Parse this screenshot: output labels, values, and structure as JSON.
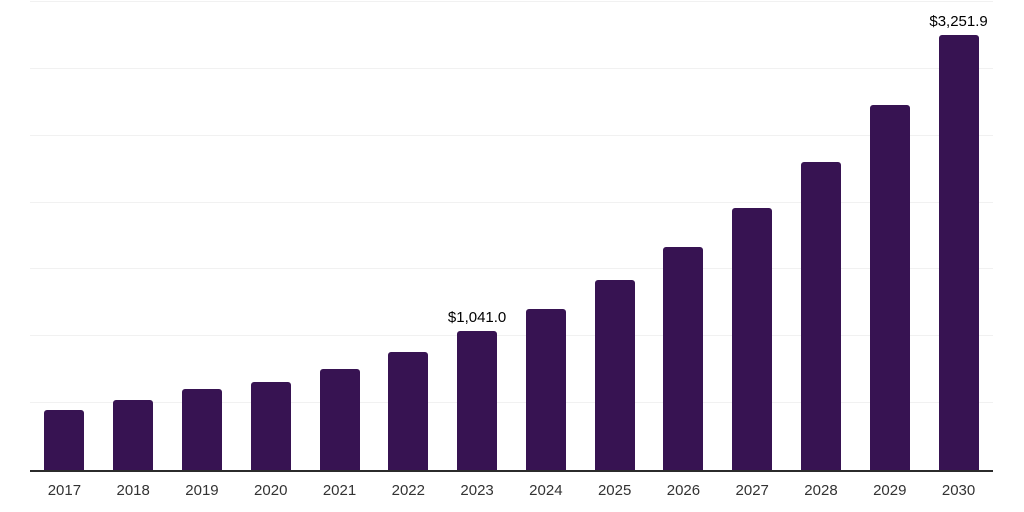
{
  "chart_data": {
    "type": "bar",
    "title": "",
    "xlabel": "",
    "ylabel": "",
    "categories": [
      "2017",
      "2018",
      "2019",
      "2020",
      "2021",
      "2022",
      "2023",
      "2024",
      "2025",
      "2026",
      "2027",
      "2028",
      "2029",
      "2030"
    ],
    "values": [
      446,
      521,
      603,
      655,
      759,
      885,
      1041.0,
      1205,
      1421,
      1667,
      1957,
      2307,
      2731,
      3251.9
    ],
    "data_labels": [
      "",
      "",
      "",
      "",
      "",
      "",
      "$1,041.0",
      "",
      "",
      "",
      "",
      "",
      "",
      "$3,251.9"
    ],
    "ylim": [
      0,
      3500
    ],
    "gridline_step": 500,
    "grid": true,
    "legend": "none",
    "colors": {
      "bar": "#371352",
      "gridline": "#f1f1f1",
      "axis_line": "#2b2b2b",
      "tick_label": "#333333",
      "data_label": "#000000",
      "background": "#ffffff"
    }
  }
}
